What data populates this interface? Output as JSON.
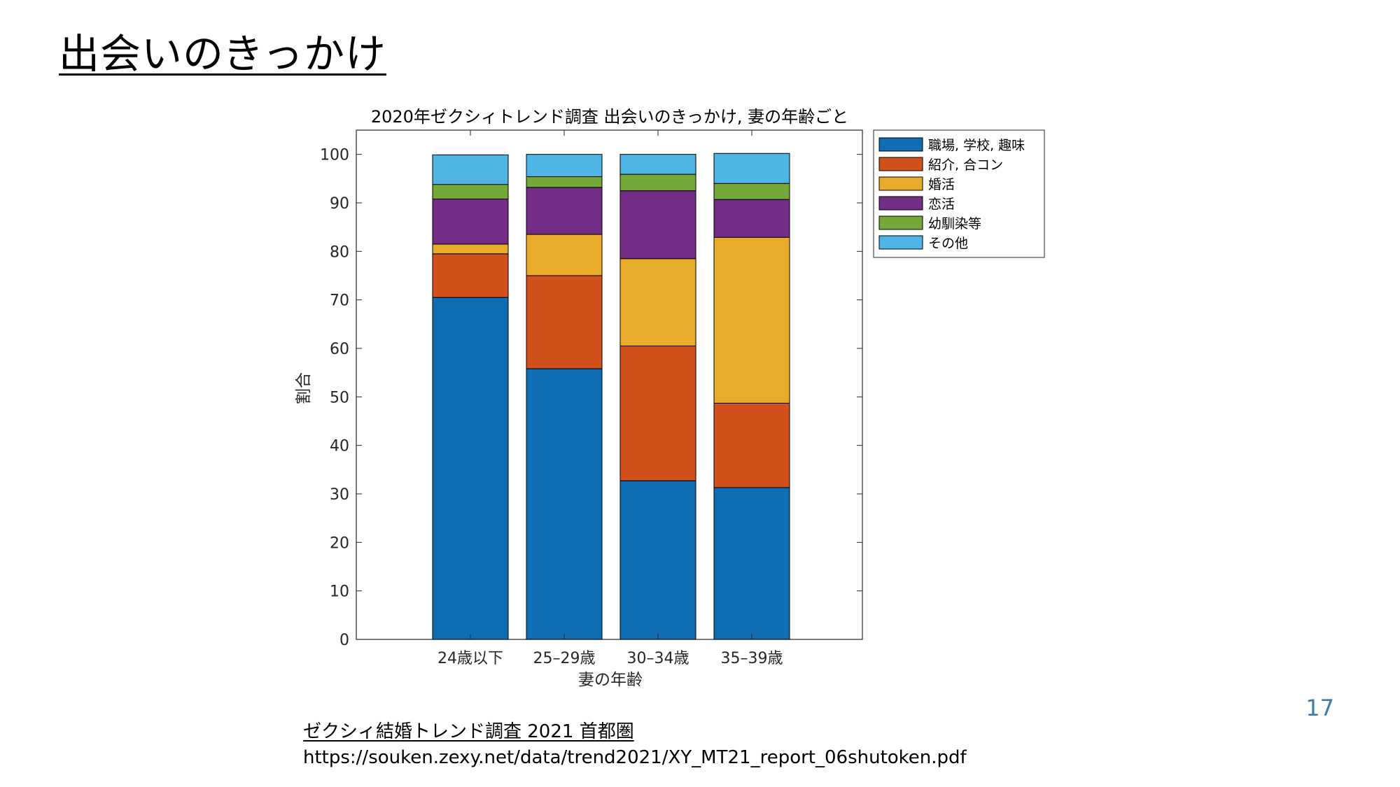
{
  "slide": {
    "title": "出会いのきっかけ",
    "page_number": "17",
    "source_title": "ゼクシィ結婚トレンド調査 2021 首都圏",
    "source_url": "https://souken.zexy.net/data/trend2021/XY_MT21_report_06shutoken.pdf"
  },
  "chart_data": {
    "type": "bar",
    "stacked": true,
    "title": "2020年ゼクシィトレンド調査 出会いのきっかけ, 妻の年齢ごと",
    "xlabel": "妻の年齢",
    "ylabel": "割合",
    "ylim": [
      0,
      105
    ],
    "yticks": [
      0,
      10,
      20,
      30,
      40,
      50,
      60,
      70,
      80,
      90,
      100
    ],
    "categories": [
      "24歳以下",
      "25–29歳",
      "30–34歳",
      "35–39歳"
    ],
    "legend_position": "outside-top-right",
    "series": [
      {
        "name": "職場, 学校, 趣味",
        "color": "#0f6db4",
        "values": [
          70.5,
          55.8,
          32.7,
          31.3
        ]
      },
      {
        "name": "紹介, 合コン",
        "color": "#d1501c",
        "values": [
          9.0,
          19.2,
          27.8,
          17.4
        ]
      },
      {
        "name": "婚活",
        "color": "#e8ab2a",
        "values": [
          2.0,
          8.5,
          18.0,
          34.2
        ]
      },
      {
        "name": "恋活",
        "color": "#742d87",
        "values": [
          9.3,
          9.7,
          14.0,
          7.8
        ]
      },
      {
        "name": "幼馴染等",
        "color": "#74a93a",
        "values": [
          3.0,
          2.2,
          3.4,
          3.3
        ]
      },
      {
        "name": "その他",
        "color": "#4db4e3",
        "values": [
          6.1,
          4.6,
          4.1,
          6.2
        ]
      }
    ]
  }
}
